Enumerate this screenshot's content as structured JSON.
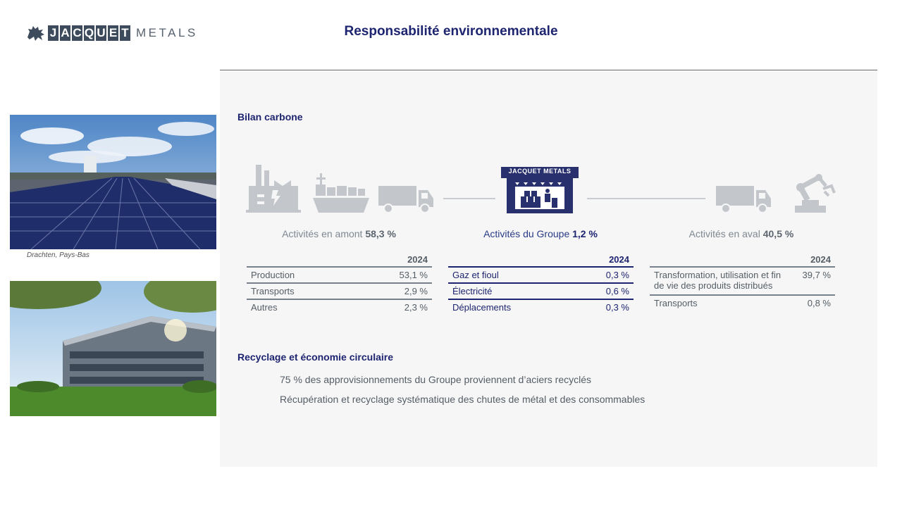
{
  "header": {
    "logo_letters": [
      "J",
      "A",
      "C",
      "Q",
      "U",
      "E",
      "T"
    ],
    "logo_suffix": "METALS",
    "title": "Responsabilité environnementale"
  },
  "photos": {
    "caption1": "Drachten, Pays-Bas"
  },
  "bilan": {
    "title": "Bilan carbone",
    "group_sign": "JACQUET METALS",
    "upstream": {
      "label": "Activités en amont",
      "value": "58,3 %",
      "year": "2024",
      "rows": [
        {
          "label": "Production",
          "value": "53,1 %"
        },
        {
          "label": "Transports",
          "value": "2,9 %"
        },
        {
          "label": "Autres",
          "value": "2,3 %"
        }
      ]
    },
    "group": {
      "label": "Activités du Groupe",
      "value": "1,2 %",
      "year": "2024",
      "rows": [
        {
          "label": "Gaz et fioul",
          "value": "0,3 %"
        },
        {
          "label": "Électricité",
          "value": "0,6 %"
        },
        {
          "label": "Déplacements",
          "value": "0,3 %"
        }
      ]
    },
    "downstream": {
      "label": "Activités en aval",
      "value": "40,5 %",
      "year": "2024",
      "rows": [
        {
          "label": "Transformation, utilisation et fin de vie des produits distribués",
          "value": "39,7 %"
        },
        {
          "label": "Transports",
          "value": "0,8 %"
        }
      ]
    }
  },
  "recyclage": {
    "title": "Recyclage et économie circulaire",
    "bullets": [
      "75 % des approvisionnements du Groupe proviennent d’aciers recyclés",
      "Récupération et recyclage systématique des chutes de métal et des consommables"
    ]
  },
  "colors": {
    "title": "#1d2470",
    "icon_gray": "#c3c6cb",
    "group_blue": "#28306e"
  }
}
